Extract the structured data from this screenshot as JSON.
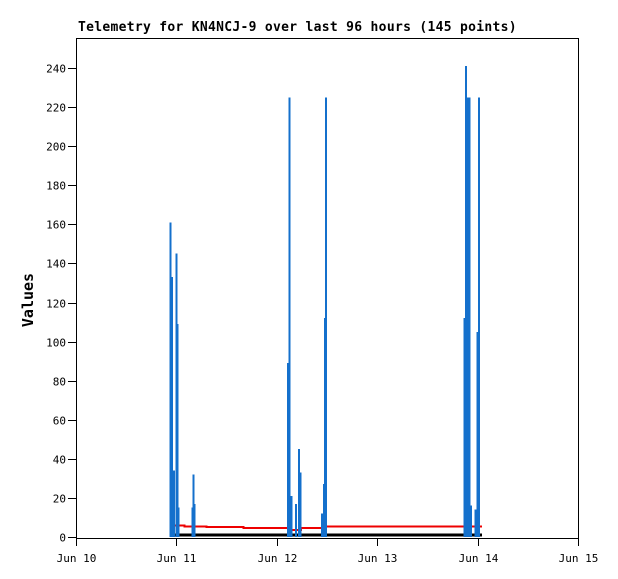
{
  "chart_data": {
    "type": "line",
    "title": "Telemetry for KN4NCJ-9 over last 96 hours (145 points)",
    "xlabel": "",
    "ylabel": "Values",
    "grid": false,
    "legend_position": "none",
    "ylim": [
      0,
      255
    ],
    "y_ticks": [
      0,
      20,
      40,
      60,
      80,
      100,
      120,
      140,
      160,
      180,
      200,
      220,
      240
    ],
    "x_axis_unit": "days after Jun 10 00:00",
    "xlim_days": [
      0,
      5
    ],
    "x_ticks": [
      {
        "day": 0,
        "label": "Jun 10"
      },
      {
        "day": 1,
        "label": "Jun 11"
      },
      {
        "day": 2,
        "label": "Jun 12"
      },
      {
        "day": 3,
        "label": "Jun 13"
      },
      {
        "day": 4,
        "label": "Jun 14"
      },
      {
        "day": 5,
        "label": "Jun 15"
      }
    ],
    "series": [
      {
        "name": "telemetry-channel-red",
        "render": "step",
        "color": "#ee0000",
        "stroke_width": 2,
        "points": [
          [
            0.936,
            6.0
          ],
          [
            1.08,
            5.5
          ],
          [
            1.3,
            5.0
          ],
          [
            1.67,
            4.7
          ],
          [
            1.99,
            4.5
          ],
          [
            2.145,
            3.5
          ],
          [
            2.24,
            4.5
          ],
          [
            2.46,
            5.5
          ],
          [
            4.044,
            5.5
          ]
        ]
      },
      {
        "name": "telemetry-channel-black",
        "render": "step",
        "color": "#000000",
        "stroke_width": 3,
        "points": [
          [
            0.936,
            1.0
          ],
          [
            4.044,
            1.0
          ]
        ]
      },
      {
        "name": "telemetry-channel-blue-spikes",
        "render": "impulse",
        "color": "#1470cc",
        "stroke_width": 2,
        "points": [
          [
            0.94,
            161
          ],
          [
            0.955,
            133
          ],
          [
            0.965,
            34
          ],
          [
            0.978,
            34
          ],
          [
            1.0,
            145
          ],
          [
            1.012,
            109
          ],
          [
            1.022,
            15
          ],
          [
            1.16,
            15
          ],
          [
            1.168,
            32
          ],
          [
            1.18,
            17
          ],
          [
            2.11,
            89
          ],
          [
            2.128,
            225
          ],
          [
            2.145,
            21
          ],
          [
            2.19,
            17
          ],
          [
            2.22,
            45
          ],
          [
            2.235,
            33
          ],
          [
            2.45,
            12
          ],
          [
            2.468,
            27
          ],
          [
            2.478,
            112
          ],
          [
            2.49,
            225
          ],
          [
            3.872,
            112
          ],
          [
            3.884,
            241
          ],
          [
            3.896,
            225
          ],
          [
            3.908,
            225
          ],
          [
            3.92,
            225
          ],
          [
            3.932,
            16
          ],
          [
            3.98,
            14
          ],
          [
            3.998,
            105
          ],
          [
            4.012,
            225
          ]
        ]
      }
    ],
    "colors": {
      "axis": "#000000",
      "background": "#ffffff",
      "spike_blue": "#1470cc",
      "line_red": "#ee0000",
      "line_black": "#000000"
    }
  }
}
